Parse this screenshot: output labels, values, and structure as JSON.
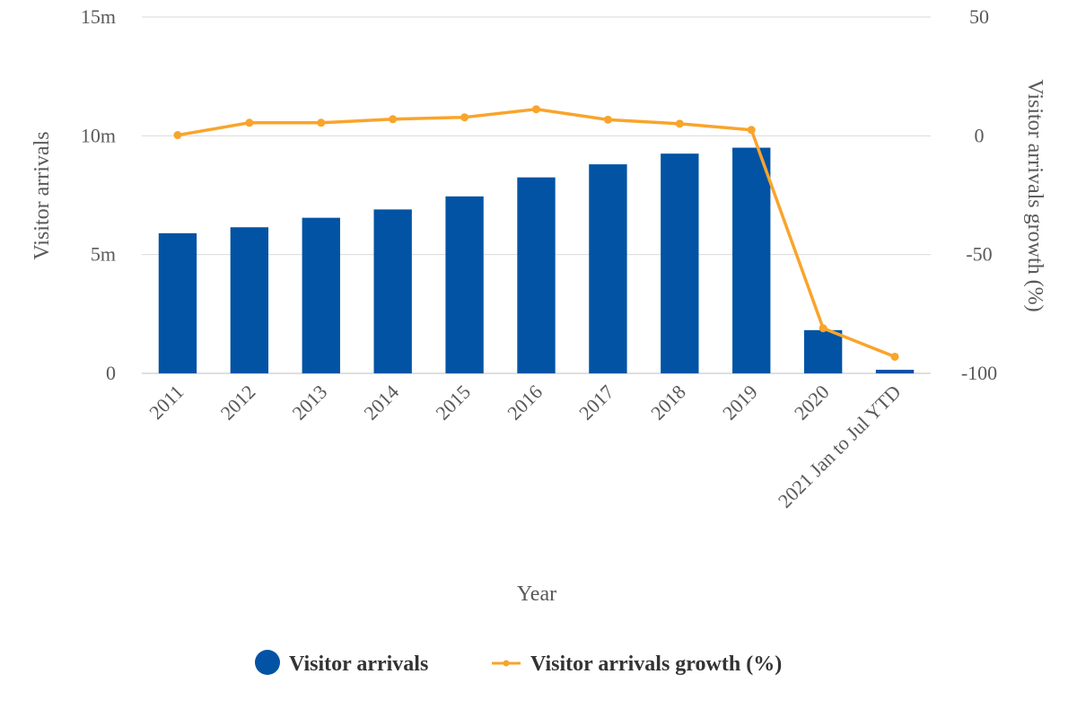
{
  "chart_data": {
    "type": "bar",
    "categories": [
      "2011",
      "2012",
      "2013",
      "2014",
      "2015",
      "2016",
      "2017",
      "2018",
      "2019",
      "2020",
      "2021 Jan to Jul YTD"
    ],
    "series": [
      {
        "name": "Visitor arrivals",
        "type": "bar",
        "axis": "left",
        "values": [
          5900000,
          6150000,
          6550000,
          6900000,
          7450000,
          8250000,
          8800000,
          9250000,
          9500000,
          1820000,
          150000
        ]
      },
      {
        "name": "Visitor arrivals growth (%)",
        "type": "line",
        "axis": "right",
        "values": [
          0.3,
          5.5,
          5.5,
          7,
          7.8,
          11.2,
          6.8,
          5.1,
          2.5,
          -81,
          -93
        ]
      }
    ],
    "xlabel": "Year",
    "ylabel": "Visitor arrivals",
    "y2label": "Visitor arrivals growth (%)",
    "ylim": [
      0,
      15000000
    ],
    "y2lim": [
      -100,
      50
    ],
    "yticks": [
      "0",
      "5m",
      "10m",
      "15m"
    ],
    "y2ticks": [
      "-100",
      "-50",
      "0",
      "50"
    ],
    "grid": true,
    "legend": "bottom-center",
    "colors": {
      "bar": "#0253a4",
      "line": "#f9a42b",
      "grid": "#d9d9d9",
      "text": "#595959"
    }
  }
}
